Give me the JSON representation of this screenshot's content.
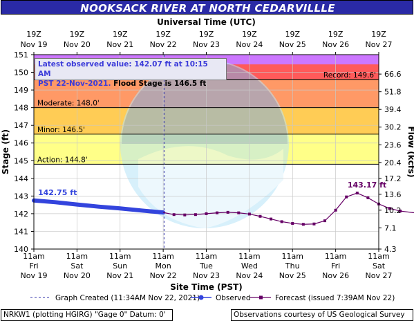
{
  "title": "NOOKSACK RIVER AT NORTH CEDARVILLLE",
  "top_axis_title": "Universal Time (UTC)",
  "bottom_axis_title": "Site Time (PST)",
  "left_axis_title": "Stage (ft)",
  "right_axis_title": "Flow (kcfs)",
  "info": {
    "line1": "Latest observed value: 142.07 ft at 10:15 AM",
    "line2a": "PST 22-Nov-2021.",
    "line2b": "Flood Stage is 146.5 ft"
  },
  "legend": {
    "created": "Graph Created (11:34AM Nov 22, 2021)",
    "observed": "Observed",
    "forecast": "Forecast (issued 7:39AM Nov 22)"
  },
  "footer": {
    "left": "NRKW1 (plotting HGIRG) \"Gage 0\" Datum: 0'",
    "right": "Observations courtesy of US Geological Survey"
  },
  "colors": {
    "title_bg": "#2a2aa6",
    "record_band": "#cc77ff",
    "major_band": "#ff5a5a",
    "moderate_band": "#ff9966",
    "minor_band": "#ffcc55",
    "action_band": "#ffff88",
    "observed": "#3344dd",
    "forecast": "#660066"
  },
  "chart_data": {
    "type": "line",
    "ylim": [
      140,
      151
    ],
    "yticks": [
      "140",
      "141",
      "142",
      "143",
      "144",
      "145",
      "146",
      "147",
      "148",
      "149",
      "150",
      "151"
    ],
    "flow_ticks": [
      {
        "stage": 140.0,
        "label": "4.3"
      },
      {
        "stage": 141.2,
        "label": "7.1"
      },
      {
        "stage": 142.2,
        "label": "10.2"
      },
      {
        "stage": 143.1,
        "label": "13.6"
      },
      {
        "stage": 144.0,
        "label": "17.2"
      },
      {
        "stage": 144.9,
        "label": "20.4"
      },
      {
        "stage": 145.9,
        "label": "23.6"
      },
      {
        "stage": 146.9,
        "label": "30.2"
      },
      {
        "stage": 147.9,
        "label": "39.4"
      },
      {
        "stage": 148.9,
        "label": "51.8"
      },
      {
        "stage": 149.9,
        "label": "66.6"
      }
    ],
    "top_ticks": [
      {
        "l1": "19Z",
        "l2": "Nov 19"
      },
      {
        "l1": "19Z",
        "l2": "Nov 20"
      },
      {
        "l1": "19Z",
        "l2": "Nov 21"
      },
      {
        "l1": "19Z",
        "l2": "Nov 22"
      },
      {
        "l1": "19Z",
        "l2": "Nov 23"
      },
      {
        "l1": "19Z",
        "l2": "Nov 24"
      },
      {
        "l1": "19Z",
        "l2": "Nov 25"
      },
      {
        "l1": "19Z",
        "l2": "Nov 26"
      },
      {
        "l1": "19Z",
        "l2": "Nov 27"
      }
    ],
    "bottom_ticks": [
      {
        "l1": "11am",
        "l2": "Fri",
        "l3": "Nov 19"
      },
      {
        "l1": "11am",
        "l2": "Sat",
        "l3": "Nov 20"
      },
      {
        "l1": "11am",
        "l2": "Sun",
        "l3": "Nov 21"
      },
      {
        "l1": "11am",
        "l2": "Mon",
        "l3": "Nov 22"
      },
      {
        "l1": "11am",
        "l2": "Tue",
        "l3": "Nov 23"
      },
      {
        "l1": "11am",
        "l2": "Wed",
        "l3": "Nov 24"
      },
      {
        "l1": "11am",
        "l2": "Thu",
        "l3": "Nov 25"
      },
      {
        "l1": "11am",
        "l2": "Fri",
        "l3": "Nov 26"
      },
      {
        "l1": "11am",
        "l2": "Sat",
        "l3": "Nov 27"
      }
    ],
    "bands": [
      {
        "name": "Action",
        "from": 144.8,
        "to": 146.5,
        "label": "Action: 144.8'"
      },
      {
        "name": "Minor",
        "from": 146.5,
        "to": 148.0,
        "label": "Minor: 146.5'"
      },
      {
        "name": "Moderate",
        "from": 148.0,
        "to": 149.6,
        "label": "Moderate: 148.0'"
      },
      {
        "name": "Record",
        "from": 149.6,
        "to": 151,
        "label": "Record: 149.6'"
      }
    ],
    "graph_created_day": 3.02,
    "observed": {
      "name": "Observed",
      "label": "142.75 ft",
      "points": [
        [
          0.0,
          142.75
        ],
        [
          0.5,
          142.65
        ],
        [
          1.0,
          142.52
        ],
        [
          1.5,
          142.4
        ],
        [
          2.0,
          142.3
        ],
        [
          2.5,
          142.18
        ],
        [
          3.0,
          142.07
        ]
      ]
    },
    "forecast": {
      "name": "Forecast",
      "label": "143.17 ft",
      "points": [
        [
          3.0,
          142.07
        ],
        [
          3.25,
          141.95
        ],
        [
          3.5,
          141.93
        ],
        [
          3.75,
          141.95
        ],
        [
          4.0,
          142.0
        ],
        [
          4.25,
          142.05
        ],
        [
          4.5,
          142.08
        ],
        [
          4.75,
          142.05
        ],
        [
          5.0,
          141.98
        ],
        [
          5.25,
          141.85
        ],
        [
          5.5,
          141.7
        ],
        [
          5.75,
          141.55
        ],
        [
          6.0,
          141.45
        ],
        [
          6.25,
          141.4
        ],
        [
          6.5,
          141.42
        ],
        [
          6.75,
          141.6
        ],
        [
          7.0,
          142.2
        ],
        [
          7.25,
          142.95
        ],
        [
          7.5,
          143.17
        ],
        [
          7.75,
          142.9
        ],
        [
          8.0,
          142.55
        ],
        [
          8.25,
          142.3
        ],
        [
          8.5,
          142.15
        ],
        [
          9.0,
          142.0
        ]
      ]
    }
  }
}
